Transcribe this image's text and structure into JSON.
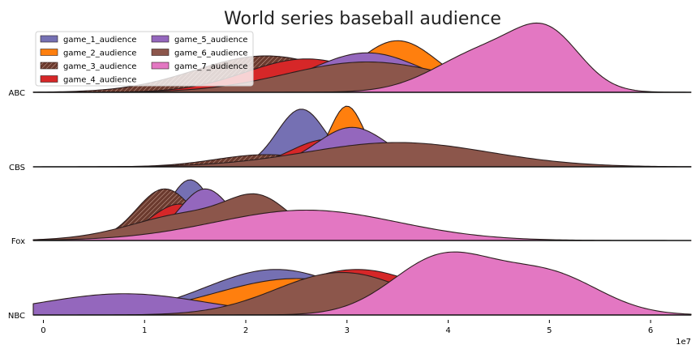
{
  "chart_data": {
    "type": "area",
    "subtype": "ridgeline-density",
    "title": "World series baseball audience",
    "x_ticks": [
      "0",
      "1",
      "2",
      "3",
      "4",
      "5",
      "6"
    ],
    "x_offset_label": "1e7",
    "xlim": [
      -1000000,
      64000000
    ],
    "rows": [
      "ABC",
      "CBS",
      "Fox",
      "NBC"
    ],
    "legend": {
      "placement": "top-left",
      "columns": 2,
      "entries": [
        "game_1_audience",
        "game_2_audience",
        "game_3_audience",
        "game_4_audience",
        "game_5_audience",
        "game_6_audience",
        "game_7_audience"
      ]
    },
    "series": [
      {
        "name": "game_1_audience",
        "color": "#7570b3",
        "hatch": false
      },
      {
        "name": "game_2_audience",
        "color": "#ff7f0e",
        "hatch": false
      },
      {
        "name": "game_3_audience",
        "color": "#7b3f3a",
        "hatch": true
      },
      {
        "name": "game_4_audience",
        "color": "#d62728",
        "hatch": false
      },
      {
        "name": "game_5_audience",
        "color": "#9467bd",
        "hatch": false
      },
      {
        "name": "game_6_audience",
        "color": "#8c564b",
        "hatch": false
      },
      {
        "name": "game_7_audience",
        "color": "#e377c2",
        "hatch": false
      }
    ],
    "densities": {
      "ABC": {
        "game_3_audience": [
          [
            22000000,
            0.6,
            7000000
          ]
        ],
        "game_4_audience": [
          [
            26000000,
            0.55,
            6000000
          ]
        ],
        "game_1_audience": [
          [
            31500000,
            0.6,
            4500000
          ]
        ],
        "game_2_audience": [
          [
            35000000,
            0.85,
            4000000
          ]
        ],
        "game_5_audience": [
          [
            32000000,
            0.65,
            5500000
          ]
        ],
        "game_6_audience": [
          [
            32000000,
            0.5,
            8000000
          ]
        ],
        "game_7_audience": [
          [
            44000000,
            0.7,
            5000000
          ],
          [
            50000000,
            0.75,
            3200000
          ]
        ]
      },
      "CBS": {
        "game_3_audience": [
          [
            22000000,
            0.2,
            5000000
          ]
        ],
        "game_1_audience": [
          [
            25500000,
            0.95,
            2400000
          ]
        ],
        "game_4_audience": [
          [
            28000000,
            0.45,
            3500000
          ]
        ],
        "game_2_audience": [
          [
            30000000,
            1.0,
            1700000
          ]
        ],
        "game_5_audience": [
          [
            30500000,
            0.65,
            3500000
          ]
        ],
        "game_6_audience": [
          [
            35000000,
            0.4,
            9000000
          ]
        ]
      },
      "Fox": {
        "game_3_audience": [
          [
            12000000,
            0.85,
            2800000
          ]
        ],
        "game_1_audience": [
          [
            14500000,
            1.0,
            2200000
          ]
        ],
        "game_4_audience": [
          [
            13500000,
            0.6,
            3000000
          ]
        ],
        "game_5_audience": [
          [
            16000000,
            0.85,
            2600000
          ]
        ],
        "game_6_audience": [
          [
            15000000,
            0.45,
            6000000
          ],
          [
            21500000,
            0.5,
            3000000
          ]
        ],
        "game_7_audience": [
          [
            26000000,
            0.5,
            9000000
          ]
        ]
      },
      "NBC": {
        "game_5_audience": [
          [
            8000000,
            0.35,
            8000000
          ]
        ],
        "game_1_audience": [
          [
            23000000,
            0.75,
            7000000
          ]
        ],
        "game_2_audience": [
          [
            25000000,
            0.6,
            8000000
          ]
        ],
        "game_4_audience": [
          [
            31000000,
            0.75,
            7000000
          ]
        ],
        "game_6_audience": [
          [
            29500000,
            0.7,
            6500000
          ]
        ],
        "game_7_audience": [
          [
            39500000,
            0.95,
            5000000
          ],
          [
            50000000,
            0.65,
            5000000
          ]
        ]
      }
    }
  }
}
